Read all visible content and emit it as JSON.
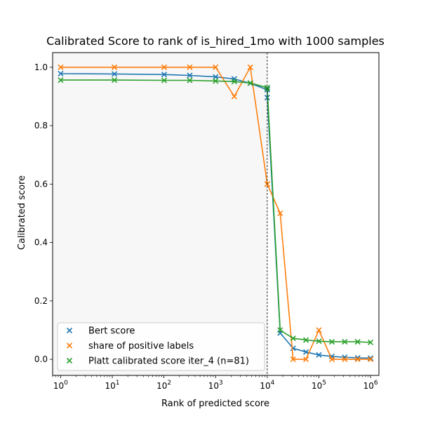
{
  "chart_data": {
    "type": "line",
    "title": "Calibrated Score to rank of is_hired_1mo with 1000 samples",
    "xlabel": "Rank of predicted score",
    "ylabel": "Calibrated score",
    "xscale": "log",
    "xlim": [
      0.7,
      1450000.0
    ],
    "ylim": [
      -0.055,
      1.05
    ],
    "xticks": [
      {
        "value": 1,
        "base": "10",
        "exp": "0"
      },
      {
        "value": 10,
        "base": "10",
        "exp": "1"
      },
      {
        "value": 100,
        "base": "10",
        "exp": "2"
      },
      {
        "value": 1000,
        "base": "10",
        "exp": "3"
      },
      {
        "value": 10000,
        "base": "10",
        "exp": "4"
      },
      {
        "value": 100000,
        "base": "10",
        "exp": "5"
      },
      {
        "value": 1000000,
        "base": "10",
        "exp": "6"
      }
    ],
    "yticks": [
      {
        "value": 0.0,
        "label": "0.0"
      },
      {
        "value": 0.2,
        "label": "0.2"
      },
      {
        "value": 0.4,
        "label": "0.4"
      },
      {
        "value": 0.6,
        "label": "0.6"
      },
      {
        "value": 0.8,
        "label": "0.8"
      },
      {
        "value": 1.0,
        "label": "1.0"
      }
    ],
    "vline_x": 10000,
    "shaded_region_x": [
      0.7,
      10000
    ],
    "grid": false,
    "legend_position": "lower-left",
    "x": [
      1,
      11,
      101,
      316,
      1000,
      2300,
      4700,
      10000,
      10000,
      17800,
      31600,
      56200,
      100000,
      178000,
      316000,
      562000,
      1000000
    ],
    "series": [
      {
        "name": "Bert score",
        "color": "#1f77b4",
        "values": [
          0.978,
          0.977,
          0.975,
          0.972,
          0.967,
          0.96,
          0.945,
          0.923,
          0.896,
          0.09,
          0.038,
          0.025,
          0.015,
          0.01,
          0.007,
          0.005,
          0.004
        ]
      },
      {
        "name": "share of positive labels",
        "color": "#ff7f0e",
        "values": [
          1.0,
          1.0,
          1.0,
          1.0,
          1.0,
          0.9,
          1.0,
          0.6,
          0.6,
          0.5,
          0.0,
          0.0,
          0.1,
          0.0,
          0.0,
          0.0,
          0.0
        ]
      },
      {
        "name": "Platt calibrated score iter_4 (n=81)",
        "color": "#2ca02c",
        "values": [
          0.956,
          0.956,
          0.955,
          0.955,
          0.953,
          0.951,
          0.946,
          0.93,
          0.928,
          0.1,
          0.072,
          0.066,
          0.062,
          0.06,
          0.06,
          0.06,
          0.058
        ]
      }
    ]
  }
}
